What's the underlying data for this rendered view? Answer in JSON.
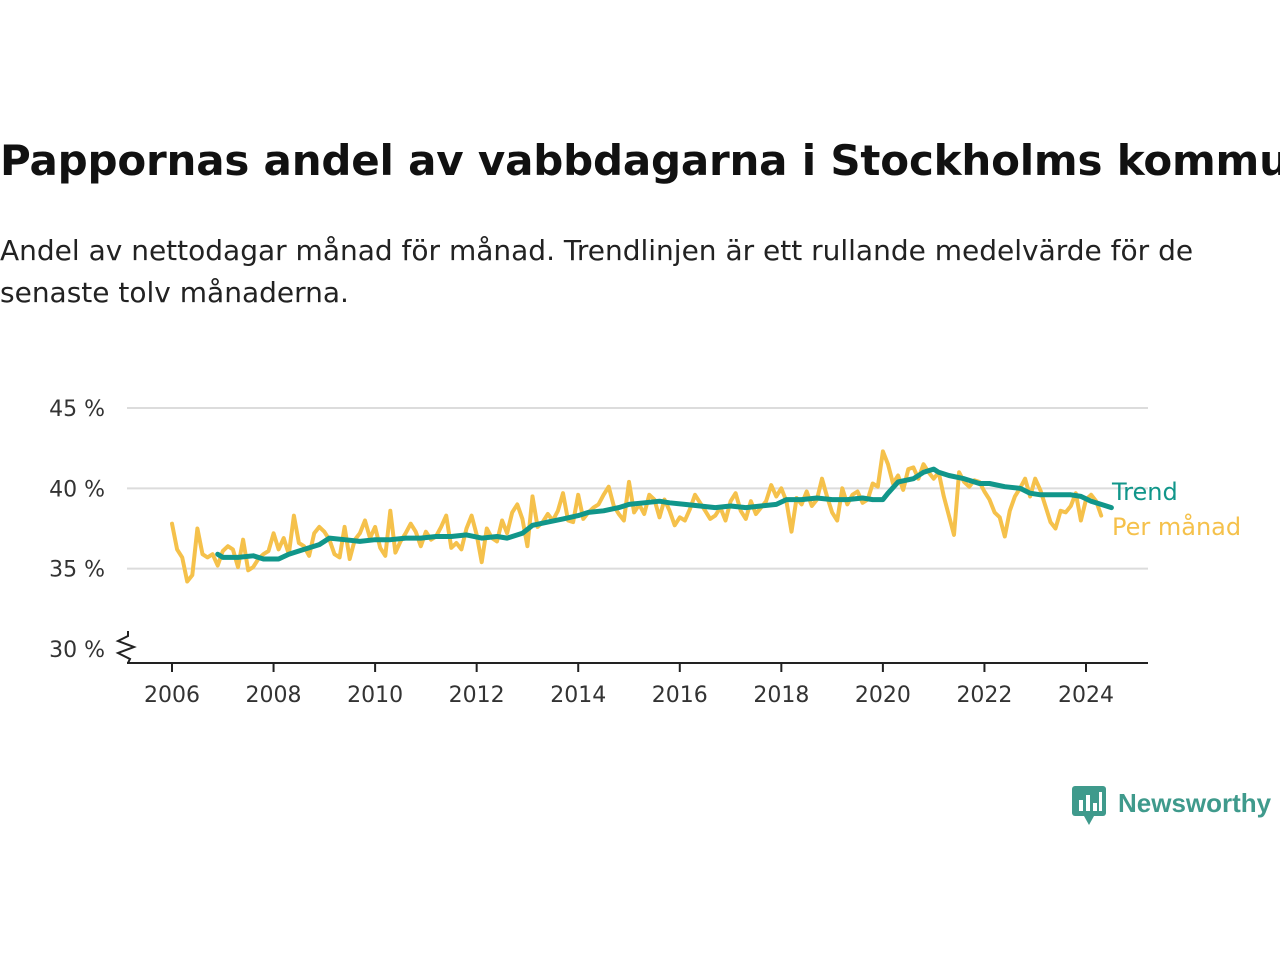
{
  "header": {
    "title": "Pappornas andel av vabbdagarna i Stockholms kommun",
    "subtitle": "Andel av nettodagar månad för månad. Trendlinjen är ett rullande medelvärde för de senaste tolv månaderna."
  },
  "brand": {
    "name": "Newsworthy",
    "color": "#3f9a8c",
    "icon": "newsworthy-chart-icon"
  },
  "colors": {
    "monthly": "#f5c14b",
    "trend": "#11968a",
    "grid": "#dcdcdc",
    "axis": "#222222"
  },
  "chart_data": {
    "type": "line",
    "title": "Pappornas andel av vabbdagarna i Stockholms kommun",
    "subtitle": "Andel av nettodagar månad för månad. Trendlinjen är ett rullande medelvärde för de senaste tolv månaderna.",
    "xlabel": "",
    "ylabel": "",
    "xlim": [
      2006,
      2024.6
    ],
    "ylim": [
      30,
      45
    ],
    "y_ticks": [
      30,
      35,
      40,
      45
    ],
    "y_tick_labels": [
      "30 %",
      "35 %",
      "40 %",
      "45 %"
    ],
    "x_ticks": [
      2006,
      2008,
      2010,
      2012,
      2014,
      2016,
      2018,
      2020,
      2022,
      2024
    ],
    "x_tick_labels": [
      "2006",
      "2008",
      "2010",
      "2012",
      "2014",
      "2016",
      "2018",
      "2020",
      "2022",
      "2024"
    ],
    "grid": true,
    "axis_break": true,
    "legend": "right end labels",
    "series": [
      {
        "name": "Per månad",
        "color": "#f5c14b",
        "points": [
          [
            2006.0,
            37.8
          ],
          [
            2006.1,
            36.2
          ],
          [
            2006.2,
            35.7
          ],
          [
            2006.3,
            34.2
          ],
          [
            2006.4,
            34.6
          ],
          [
            2006.5,
            37.5
          ],
          [
            2006.6,
            35.9
          ],
          [
            2006.7,
            35.7
          ],
          [
            2006.8,
            35.9
          ],
          [
            2006.9,
            35.2
          ],
          [
            2007.0,
            36.1
          ],
          [
            2007.1,
            36.4
          ],
          [
            2007.2,
            36.2
          ],
          [
            2007.3,
            35.1
          ],
          [
            2007.4,
            36.8
          ],
          [
            2007.5,
            34.9
          ],
          [
            2007.6,
            35.1
          ],
          [
            2007.7,
            35.6
          ],
          [
            2007.8,
            35.9
          ],
          [
            2007.9,
            36.1
          ],
          [
            2008.0,
            37.2
          ],
          [
            2008.1,
            36.2
          ],
          [
            2008.2,
            36.9
          ],
          [
            2008.3,
            35.9
          ],
          [
            2008.4,
            38.3
          ],
          [
            2008.5,
            36.6
          ],
          [
            2008.6,
            36.4
          ],
          [
            2008.7,
            35.8
          ],
          [
            2008.8,
            37.2
          ],
          [
            2008.9,
            37.6
          ],
          [
            2009.0,
            37.3
          ],
          [
            2009.1,
            36.8
          ],
          [
            2009.2,
            35.9
          ],
          [
            2009.3,
            35.7
          ],
          [
            2009.4,
            37.6
          ],
          [
            2009.5,
            35.6
          ],
          [
            2009.6,
            36.8
          ],
          [
            2009.7,
            37.2
          ],
          [
            2009.8,
            38.0
          ],
          [
            2009.9,
            36.9
          ],
          [
            2010.0,
            37.6
          ],
          [
            2010.1,
            36.3
          ],
          [
            2010.2,
            35.8
          ],
          [
            2010.3,
            38.6
          ],
          [
            2010.4,
            36.0
          ],
          [
            2010.5,
            36.7
          ],
          [
            2010.6,
            37.2
          ],
          [
            2010.7,
            37.8
          ],
          [
            2010.8,
            37.3
          ],
          [
            2010.9,
            36.4
          ],
          [
            2011.0,
            37.3
          ],
          [
            2011.1,
            36.8
          ],
          [
            2011.2,
            37.0
          ],
          [
            2011.3,
            37.6
          ],
          [
            2011.4,
            38.3
          ],
          [
            2011.5,
            36.3
          ],
          [
            2011.6,
            36.6
          ],
          [
            2011.7,
            36.2
          ],
          [
            2011.8,
            37.5
          ],
          [
            2011.9,
            38.3
          ],
          [
            2012.0,
            37.1
          ],
          [
            2012.1,
            35.4
          ],
          [
            2012.2,
            37.5
          ],
          [
            2012.3,
            36.9
          ],
          [
            2012.4,
            36.7
          ],
          [
            2012.5,
            38.0
          ],
          [
            2012.6,
            37.2
          ],
          [
            2012.7,
            38.5
          ],
          [
            2012.8,
            39.0
          ],
          [
            2012.9,
            38.1
          ],
          [
            2013.0,
            36.4
          ],
          [
            2013.1,
            39.5
          ],
          [
            2013.2,
            37.6
          ],
          [
            2013.3,
            37.9
          ],
          [
            2013.4,
            38.4
          ],
          [
            2013.5,
            38.0
          ],
          [
            2013.6,
            38.6
          ],
          [
            2013.7,
            39.7
          ],
          [
            2013.8,
            38.0
          ],
          [
            2013.9,
            37.9
          ],
          [
            2014.0,
            39.6
          ],
          [
            2014.1,
            38.1
          ],
          [
            2014.2,
            38.5
          ],
          [
            2014.3,
            38.8
          ],
          [
            2014.4,
            39.0
          ],
          [
            2014.5,
            39.6
          ],
          [
            2014.6,
            40.1
          ],
          [
            2014.7,
            38.9
          ],
          [
            2014.8,
            38.4
          ],
          [
            2014.9,
            38.0
          ],
          [
            2015.0,
            40.4
          ],
          [
            2015.1,
            38.5
          ],
          [
            2015.2,
            39.0
          ],
          [
            2015.3,
            38.4
          ],
          [
            2015.4,
            39.6
          ],
          [
            2015.5,
            39.3
          ],
          [
            2015.6,
            38.2
          ],
          [
            2015.7,
            39.3
          ],
          [
            2015.8,
            38.6
          ],
          [
            2015.9,
            37.7
          ],
          [
            2016.0,
            38.2
          ],
          [
            2016.1,
            38.0
          ],
          [
            2016.2,
            38.7
          ],
          [
            2016.3,
            39.6
          ],
          [
            2016.4,
            39.1
          ],
          [
            2016.5,
            38.6
          ],
          [
            2016.6,
            38.1
          ],
          [
            2016.7,
            38.3
          ],
          [
            2016.8,
            38.8
          ],
          [
            2016.9,
            38.0
          ],
          [
            2017.0,
            39.2
          ],
          [
            2017.1,
            39.7
          ],
          [
            2017.2,
            38.6
          ],
          [
            2017.3,
            38.1
          ],
          [
            2017.4,
            39.2
          ],
          [
            2017.5,
            38.4
          ],
          [
            2017.6,
            38.8
          ],
          [
            2017.7,
            39.2
          ],
          [
            2017.8,
            40.2
          ],
          [
            2017.9,
            39.5
          ],
          [
            2018.0,
            40.0
          ],
          [
            2018.1,
            39.2
          ],
          [
            2018.2,
            37.3
          ],
          [
            2018.3,
            39.4
          ],
          [
            2018.4,
            39.0
          ],
          [
            2018.5,
            39.8
          ],
          [
            2018.6,
            38.9
          ],
          [
            2018.7,
            39.3
          ],
          [
            2018.8,
            40.6
          ],
          [
            2018.9,
            39.5
          ],
          [
            2019.0,
            38.5
          ],
          [
            2019.1,
            38.0
          ],
          [
            2019.2,
            40.0
          ],
          [
            2019.3,
            39.0
          ],
          [
            2019.4,
            39.6
          ],
          [
            2019.5,
            39.8
          ],
          [
            2019.6,
            39.1
          ],
          [
            2019.7,
            39.3
          ],
          [
            2019.8,
            40.3
          ],
          [
            2019.9,
            40.1
          ],
          [
            2020.0,
            42.3
          ],
          [
            2020.1,
            41.5
          ],
          [
            2020.2,
            40.3
          ],
          [
            2020.3,
            40.8
          ],
          [
            2020.4,
            39.9
          ],
          [
            2020.5,
            41.2
          ],
          [
            2020.6,
            41.3
          ],
          [
            2020.7,
            40.6
          ],
          [
            2020.8,
            41.5
          ],
          [
            2020.9,
            41.0
          ],
          [
            2021.0,
            40.6
          ],
          [
            2021.1,
            41.0
          ],
          [
            2021.2,
            39.5
          ],
          [
            2021.3,
            38.3
          ],
          [
            2021.4,
            37.1
          ],
          [
            2021.5,
            41.0
          ],
          [
            2021.6,
            40.4
          ],
          [
            2021.7,
            40.1
          ],
          [
            2021.8,
            40.5
          ],
          [
            2021.9,
            40.4
          ],
          [
            2022.0,
            39.8
          ],
          [
            2022.1,
            39.3
          ],
          [
            2022.2,
            38.5
          ],
          [
            2022.3,
            38.2
          ],
          [
            2022.4,
            37.0
          ],
          [
            2022.5,
            38.6
          ],
          [
            2022.6,
            39.5
          ],
          [
            2022.7,
            40.0
          ],
          [
            2022.8,
            40.6
          ],
          [
            2022.9,
            39.5
          ],
          [
            2023.0,
            40.6
          ],
          [
            2023.1,
            39.9
          ],
          [
            2023.2,
            38.9
          ],
          [
            2023.3,
            37.9
          ],
          [
            2023.4,
            37.5
          ],
          [
            2023.5,
            38.6
          ],
          [
            2023.6,
            38.5
          ],
          [
            2023.7,
            38.9
          ],
          [
            2023.8,
            39.7
          ],
          [
            2023.9,
            38.0
          ],
          [
            2024.0,
            39.3
          ],
          [
            2024.1,
            39.6
          ],
          [
            2024.2,
            39.2
          ],
          [
            2024.3,
            38.3
          ]
        ]
      },
      {
        "name": "Trend",
        "color": "#11968a",
        "points": [
          [
            2006.9,
            35.9
          ],
          [
            2007.0,
            35.7
          ],
          [
            2007.3,
            35.7
          ],
          [
            2007.6,
            35.8
          ],
          [
            2007.8,
            35.6
          ],
          [
            2008.1,
            35.6
          ],
          [
            2008.3,
            35.9
          ],
          [
            2008.6,
            36.2
          ],
          [
            2008.9,
            36.5
          ],
          [
            2009.1,
            36.9
          ],
          [
            2009.4,
            36.8
          ],
          [
            2009.7,
            36.7
          ],
          [
            2010.0,
            36.8
          ],
          [
            2010.3,
            36.8
          ],
          [
            2010.6,
            36.9
          ],
          [
            2010.9,
            36.9
          ],
          [
            2011.2,
            37.0
          ],
          [
            2011.5,
            37.0
          ],
          [
            2011.8,
            37.1
          ],
          [
            2012.1,
            36.9
          ],
          [
            2012.4,
            37.0
          ],
          [
            2012.6,
            36.9
          ],
          [
            2012.9,
            37.2
          ],
          [
            2013.1,
            37.7
          ],
          [
            2013.4,
            37.9
          ],
          [
            2013.7,
            38.1
          ],
          [
            2014.0,
            38.3
          ],
          [
            2014.2,
            38.5
          ],
          [
            2014.5,
            38.6
          ],
          [
            2014.8,
            38.8
          ],
          [
            2015.0,
            39.0
          ],
          [
            2015.3,
            39.1
          ],
          [
            2015.6,
            39.2
          ],
          [
            2015.8,
            39.1
          ],
          [
            2016.1,
            39.0
          ],
          [
            2016.4,
            38.9
          ],
          [
            2016.7,
            38.8
          ],
          [
            2017.0,
            38.9
          ],
          [
            2017.3,
            38.8
          ],
          [
            2017.6,
            38.9
          ],
          [
            2017.9,
            39.0
          ],
          [
            2018.1,
            39.3
          ],
          [
            2018.4,
            39.3
          ],
          [
            2018.7,
            39.4
          ],
          [
            2019.0,
            39.3
          ],
          [
            2019.3,
            39.3
          ],
          [
            2019.6,
            39.4
          ],
          [
            2019.8,
            39.3
          ],
          [
            2020.0,
            39.3
          ],
          [
            2020.1,
            39.7
          ],
          [
            2020.3,
            40.4
          ],
          [
            2020.6,
            40.6
          ],
          [
            2020.8,
            41.0
          ],
          [
            2021.0,
            41.2
          ],
          [
            2021.1,
            41.0
          ],
          [
            2021.3,
            40.8
          ],
          [
            2021.6,
            40.6
          ],
          [
            2021.9,
            40.3
          ],
          [
            2022.1,
            40.3
          ],
          [
            2022.4,
            40.1
          ],
          [
            2022.7,
            40.0
          ],
          [
            2022.9,
            39.7
          ],
          [
            2023.1,
            39.6
          ],
          [
            2023.4,
            39.6
          ],
          [
            2023.7,
            39.6
          ],
          [
            2023.9,
            39.5
          ],
          [
            2024.1,
            39.2
          ],
          [
            2024.3,
            39.0
          ],
          [
            2024.5,
            38.8
          ]
        ]
      }
    ]
  }
}
